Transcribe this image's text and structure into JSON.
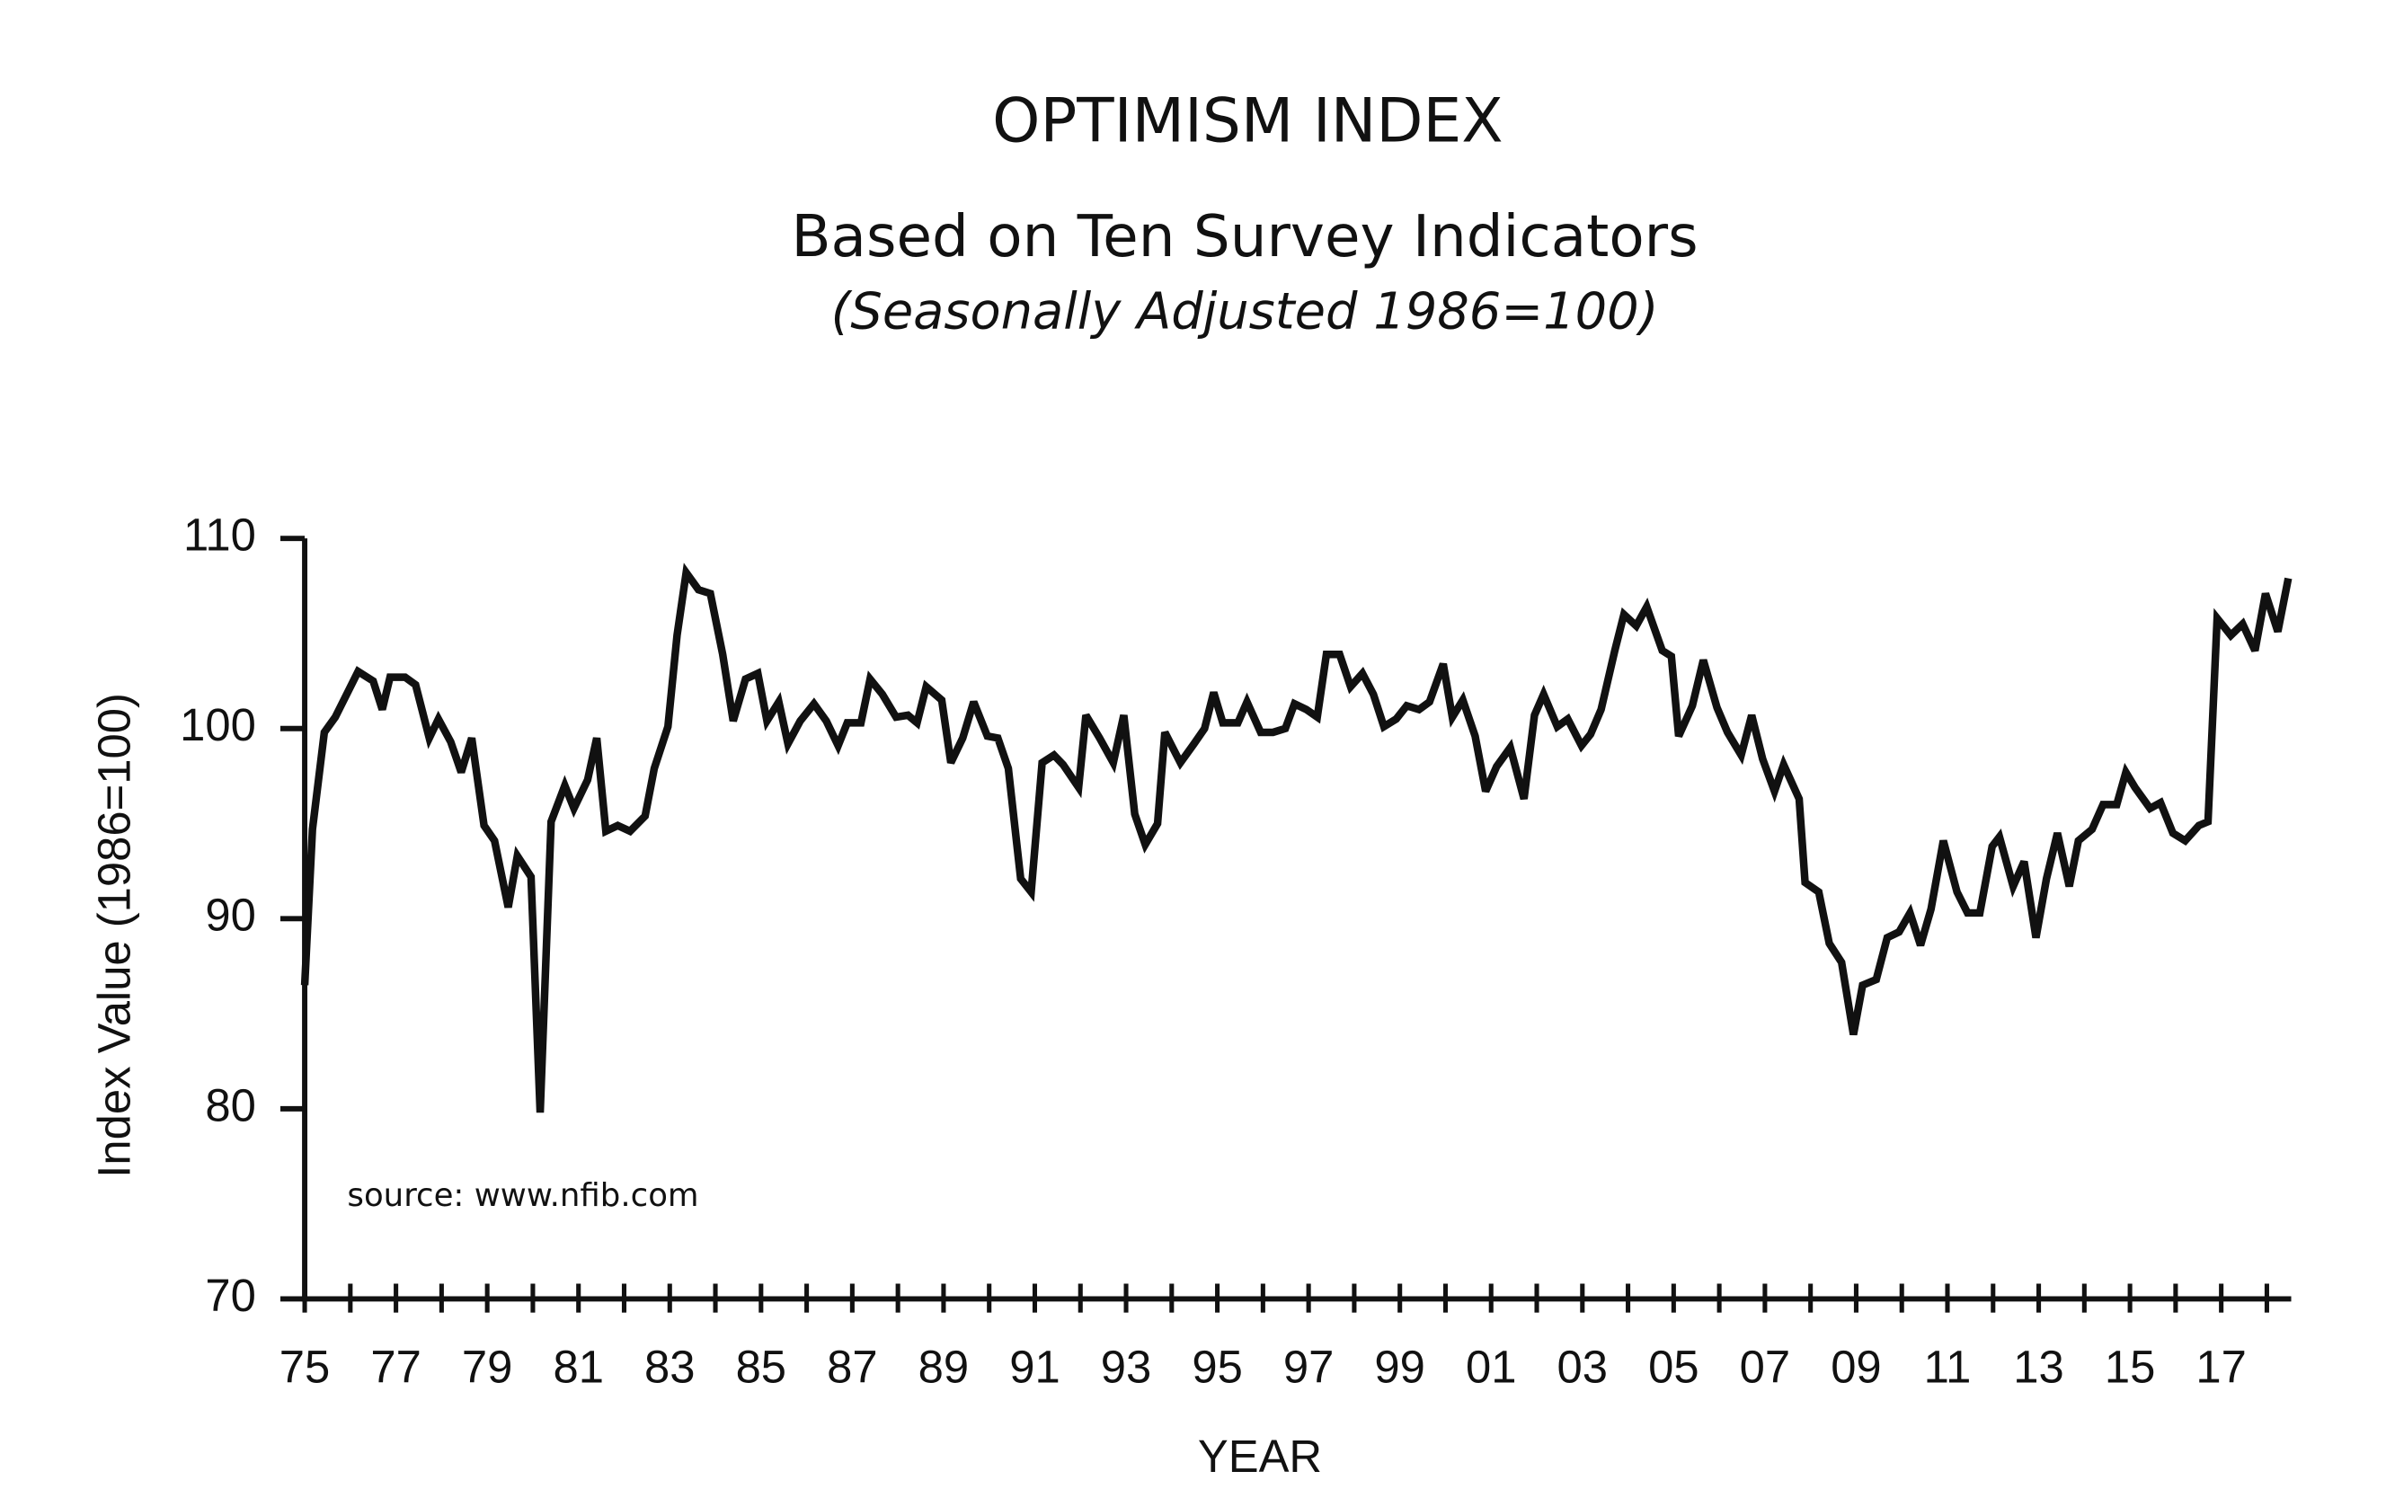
{
  "chart_data": {
    "type": "line",
    "title": "OPTIMISM INDEX",
    "subtitle": "Based on Ten Survey Indicators",
    "note": "(Seasonally Adjusted 1986=100)",
    "source": "source: www.nfib.com",
    "x_label": "YEAR",
    "y_label": "Index Value (1986=100)",
    "color": "#111111",
    "xlim": [
      1975,
      2018.5
    ],
    "ylim": [
      70,
      110
    ],
    "yticks": [
      70,
      80,
      90,
      100,
      110
    ],
    "xticks": [
      {
        "value": 1975,
        "label": "75"
      },
      {
        "value": 1977,
        "label": "77"
      },
      {
        "value": 1979,
        "label": "79"
      },
      {
        "value": 1981,
        "label": "81"
      },
      {
        "value": 1983,
        "label": "83"
      },
      {
        "value": 1985,
        "label": "85"
      },
      {
        "value": 1987,
        "label": "87"
      },
      {
        "value": 1989,
        "label": "89"
      },
      {
        "value": 1991,
        "label": "91"
      },
      {
        "value": 1993,
        "label": "93"
      },
      {
        "value": 1995,
        "label": "95"
      },
      {
        "value": 1997,
        "label": "97"
      },
      {
        "value": 1999,
        "label": "99"
      },
      {
        "value": 2001,
        "label": "01"
      },
      {
        "value": 2003,
        "label": "03"
      },
      {
        "value": 2005,
        "label": "05"
      },
      {
        "value": 2007,
        "label": "07"
      },
      {
        "value": 2009,
        "label": "09"
      },
      {
        "value": 2011,
        "label": "11"
      },
      {
        "value": 2013,
        "label": "13"
      },
      {
        "value": 2015,
        "label": "15"
      },
      {
        "value": 2017,
        "label": "17"
      }
    ],
    "xminor_ticks": [
      1976,
      1978,
      1980,
      1982,
      1984,
      1986,
      1988,
      1990,
      1992,
      1994,
      1996,
      1998,
      2000,
      2002,
      2004,
      2006,
      2008,
      2010,
      2012,
      2014,
      2016,
      2018
    ],
    "x": [
      1975.0,
      1975.17,
      1975.43,
      1975.67,
      1976.17,
      1976.5,
      1976.7,
      1976.87,
      1977.2,
      1977.43,
      1977.73,
      1977.93,
      1978.2,
      1978.43,
      1978.66,
      1978.93,
      1979.16,
      1979.46,
      1979.66,
      1979.96,
      1980.16,
      1980.4,
      1980.7,
      1980.9,
      1981.2,
      1981.4,
      1981.6,
      1981.86,
      1982.13,
      1982.46,
      1982.66,
      1982.96,
      1983.16,
      1983.36,
      1983.63,
      1983.89,
      1984.16,
      1984.39,
      1984.66,
      1984.93,
      1985.13,
      1985.39,
      1985.59,
      1985.86,
      1986.16,
      1986.43,
      1986.69,
      1986.89,
      1987.19,
      1987.39,
      1987.66,
      1987.96,
      1988.22,
      1988.42,
      1988.62,
      1988.96,
      1989.16,
      1989.42,
      1989.66,
      1989.96,
      1990.19,
      1990.42,
      1990.69,
      1990.92,
      1991.16,
      1991.42,
      1991.62,
      1991.96,
      1992.12,
      1992.42,
      1992.72,
      1992.95,
      1993.19,
      1993.42,
      1993.69,
      1993.85,
      1994.19,
      1994.49,
      1994.72,
      1994.92,
      1995.12,
      1995.45,
      1995.65,
      1995.95,
      1996.22,
      1996.49,
      1996.69,
      1996.95,
      1997.19,
      1997.39,
      1997.68,
      1997.92,
      1998.18,
      1998.42,
      1998.65,
      1998.92,
      1999.15,
      1999.42,
      1999.65,
      1999.95,
      2000.15,
      2000.38,
      2000.65,
      2000.88,
      2001.12,
      2001.42,
      2001.72,
      2001.95,
      2002.15,
      2002.45,
      2002.68,
      2002.98,
      2003.18,
      2003.41,
      2003.71,
      2003.91,
      2004.18,
      2004.41,
      2004.75,
      2004.95,
      2005.11,
      2005.41,
      2005.65,
      2005.95,
      2006.18,
      2006.48,
      2006.71,
      2006.95,
      2007.21,
      2007.41,
      2007.75,
      2007.88,
      2008.18,
      2008.41,
      2008.68,
      2008.94,
      2009.14,
      2009.44,
      2009.68,
      2009.94,
      2010.18,
      2010.41,
      2010.64,
      2010.91,
      2011.21,
      2011.44,
      2011.71,
      2011.98,
      2012.14,
      2012.44,
      2012.68,
      2012.94,
      2013.17,
      2013.41,
      2013.67,
      2013.87,
      2014.17,
      2014.41,
      2014.71,
      2014.91,
      2015.11,
      2015.44,
      2015.67,
      2015.94,
      2016.21,
      2016.51,
      2016.71,
      2016.91,
      2017.21,
      2017.47,
      2017.74,
      2017.97,
      2018.24,
      2018.47
    ],
    "values": [
      86.5,
      94.7,
      99.8,
      100.6,
      103.0,
      102.5,
      101.0,
      102.7,
      102.7,
      102.3,
      99.5,
      100.5,
      99.3,
      97.7,
      99.5,
      94.9,
      94.1,
      90.6,
      93.3,
      92.2,
      79.8,
      95.1,
      97.0,
      95.8,
      97.3,
      99.5,
      94.6,
      94.9,
      94.6,
      95.4,
      97.9,
      100.1,
      104.9,
      108.2,
      107.3,
      107.1,
      103.9,
      100.4,
      102.6,
      102.9,
      100.4,
      101.4,
      99.2,
      100.4,
      101.3,
      100.4,
      99.1,
      100.3,
      100.3,
      102.6,
      101.8,
      100.6,
      100.7,
      100.3,
      102.2,
      101.5,
      98.2,
      99.5,
      101.4,
      99.6,
      99.5,
      97.9,
      92.1,
      91.4,
      98.2,
      98.6,
      98.1,
      96.9,
      100.7,
      99.5,
      98.2,
      100.7,
      95.5,
      93.9,
      95.0,
      99.8,
      98.2,
      99.2,
      100.0,
      101.9,
      100.3,
      100.3,
      101.4,
      99.8,
      99.8,
      100.0,
      101.3,
      101.0,
      100.6,
      103.9,
      103.9,
      102.2,
      102.9,
      101.8,
      100.1,
      100.5,
      101.2,
      101.0,
      101.4,
      103.4,
      100.6,
      101.5,
      99.6,
      96.7,
      98.0,
      99.0,
      96.3,
      100.7,
      101.8,
      100.1,
      100.5,
      99.1,
      99.7,
      101.0,
      104.1,
      106.0,
      105.4,
      106.4,
      104.1,
      103.8,
      99.6,
      101.2,
      103.6,
      101.1,
      99.8,
      98.6,
      100.7,
      98.4,
      96.7,
      98.1,
      96.3,
      91.9,
      91.4,
      88.7,
      87.7,
      83.9,
      86.5,
      86.8,
      89.0,
      89.3,
      90.3,
      88.6,
      90.5,
      94.1,
      91.4,
      90.3,
      90.3,
      93.8,
      94.3,
      91.7,
      93.0,
      89.0,
      92.1,
      94.5,
      91.7,
      94.1,
      94.7,
      96.0,
      96.0,
      97.7,
      96.9,
      95.8,
      96.1,
      94.5,
      94.1,
      94.9,
      95.1,
      105.8,
      104.9,
      105.5,
      104.1,
      107.1,
      105.1,
      107.9
    ]
  }
}
